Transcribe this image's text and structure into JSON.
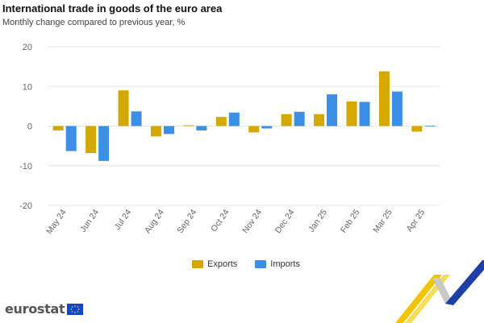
{
  "header": {
    "title": "International trade in goods of the euro area",
    "subtitle": "Monthly change compared to previous year, %"
  },
  "legend": {
    "exports": "Exports",
    "imports": "Imports"
  },
  "brand": {
    "name": "eurostat"
  },
  "colors": {
    "exports": "#d4a800",
    "imports": "#3b8fe6",
    "grid": "#e6e6e6",
    "axis_text": "#666666"
  },
  "chart_data": {
    "type": "bar",
    "categories": [
      "May 24",
      "Jun 24",
      "Jul 24",
      "Aug 24",
      "Sep 24",
      "Oct 24",
      "Nov 24",
      "Dec 24",
      "Jan 25",
      "Feb 25",
      "Mar 25",
      "Apr 25"
    ],
    "series": [
      {
        "name": "Exports",
        "values": [
          -1.1,
          -6.8,
          9.0,
          -2.6,
          0.2,
          2.3,
          -1.6,
          3.0,
          3.0,
          6.2,
          13.8,
          -1.4
        ]
      },
      {
        "name": "Imports",
        "values": [
          -6.3,
          -8.8,
          3.7,
          -2.0,
          -1.1,
          3.4,
          -0.6,
          3.6,
          8.0,
          6.1,
          8.7,
          0.1
        ]
      }
    ],
    "ylim": [
      -20,
      20
    ],
    "yticks": [
      20,
      10,
      0,
      -10,
      -20
    ],
    "grid": true,
    "legend_position": "bottom-center"
  }
}
